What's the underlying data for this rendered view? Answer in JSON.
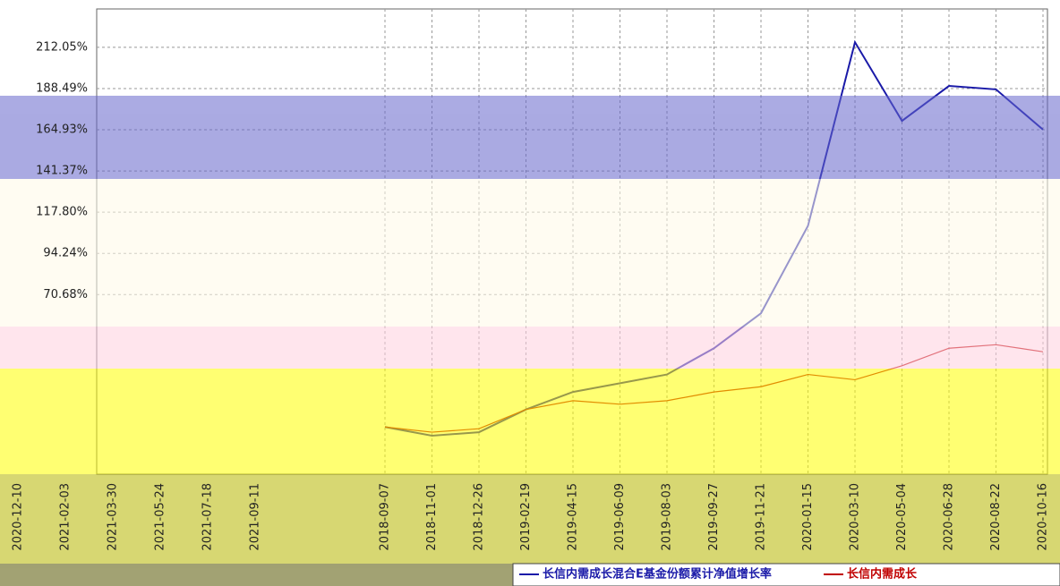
{
  "chart_data": {
    "type": "line",
    "categories": [
      "2018-09-07",
      "2018-11-01",
      "2018-12-26",
      "2019-02-19",
      "2019-04-15",
      "2019-06-09",
      "2019-08-03",
      "2019-09-27",
      "2019-11-21",
      "2020-01-15",
      "2020-03-10",
      "2020-05-04",
      "2020-06-28",
      "2020-08-22",
      "2020-10-16"
    ],
    "fragment_categories": [
      "2020-12-10",
      "2021-02-03",
      "2021-03-30",
      "2021-05-24",
      "2021-07-18",
      "2021-09-11"
    ],
    "series": [
      {
        "name": "长信内需成长混合E基金份额累计净值增长率",
        "color": "#1a1aa8",
        "values": [
          -5,
          -10,
          -8,
          5,
          15,
          20,
          25,
          40,
          60,
          110,
          215,
          170,
          190,
          188,
          165
        ]
      },
      {
        "name": "长信内需成长",
        "color": "#c00000",
        "values": [
          -5,
          -8,
          -6,
          5,
          10,
          8,
          10,
          15,
          18,
          25,
          22,
          30,
          40,
          42,
          38
        ]
      }
    ],
    "ylim": [
      -32,
      234
    ],
    "yticks": [
      {
        "value": 212.05,
        "label": "212.05%"
      },
      {
        "value": 188.49,
        "label": "188.49%"
      },
      {
        "value": 164.93,
        "label": "164.93%"
      },
      {
        "value": 141.37,
        "label": "141.37%"
      },
      {
        "value": 117.8,
        "label": "117.80%"
      },
      {
        "value": 94.24,
        "label": "94.24%"
      },
      {
        "value": 70.68,
        "label": "70.68%"
      }
    ],
    "grid": true
  }
}
